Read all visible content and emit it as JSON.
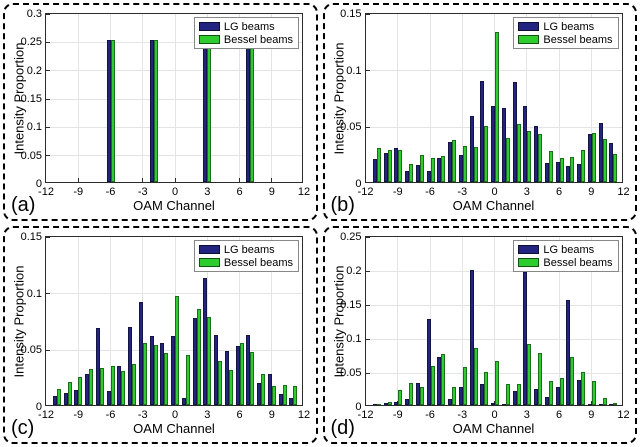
{
  "colors": {
    "lg": "#232380",
    "bessel": "#2FCC2F",
    "grid": "#e4e4e4",
    "axis": "#2b2b2b"
  },
  "legend": {
    "items": [
      {
        "label": "LG beams",
        "color_key": "lg"
      },
      {
        "label": "Bessel beams",
        "color_key": "bessel"
      }
    ]
  },
  "chart_data": [
    {
      "id": "a",
      "panel_label": "(a)",
      "type": "bar",
      "xlabel": "OAM Channel",
      "ylabel": "Intensity Proportion",
      "xlim": [
        -12,
        12
      ],
      "ylim": [
        0,
        0.3
      ],
      "xticks": [
        -12,
        -9,
        -6,
        -3,
        0,
        3,
        6,
        9,
        12
      ],
      "yticks": [
        0,
        0.05,
        0.1,
        0.15,
        0.2,
        0.25,
        0.3
      ],
      "grid": true,
      "legend_position": "top-right",
      "channels": [
        -6,
        -2,
        3,
        7
      ],
      "series": [
        {
          "name": "LG beams",
          "values": [
            0.25,
            0.25,
            0.25,
            0.25
          ]
        },
        {
          "name": "Bessel beams",
          "values": [
            0.25,
            0.25,
            0.25,
            0.25
          ]
        }
      ]
    },
    {
      "id": "b",
      "panel_label": "(b)",
      "type": "bar",
      "xlabel": "OAM Channel",
      "ylabel": "Intensity Proportion",
      "xlim": [
        -12,
        12
      ],
      "ylim": [
        0,
        0.15
      ],
      "xticks": [
        -12,
        -9,
        -6,
        -3,
        0,
        3,
        6,
        9,
        12
      ],
      "yticks": [
        0,
        0.05,
        0.1,
        0.15
      ],
      "grid": true,
      "legend_position": "top-right",
      "channels": [
        -11,
        -10,
        -9,
        -8,
        -7,
        -6,
        -5,
        -4,
        -3,
        -2,
        -1,
        0,
        1,
        2,
        3,
        4,
        5,
        6,
        7,
        8,
        9,
        10,
        11
      ],
      "series": [
        {
          "name": "LG beams",
          "values": [
            0.02,
            0.026,
            0.03,
            0.01,
            0.015,
            0.01,
            0.021,
            0.035,
            0.024,
            0.058,
            0.089,
            0.067,
            0.065,
            0.088,
            0.067,
            0.049,
            0.017,
            0.018,
            0.014,
            0.016,
            0.042,
            0.052,
            0.034
          ]
        },
        {
          "name": "Bessel beams",
          "values": [
            0.03,
            0.028,
            0.028,
            0.016,
            0.024,
            0.021,
            0.023,
            0.037,
            0.032,
            0.031,
            0.049,
            0.132,
            0.039,
            0.051,
            0.045,
            0.042,
            0.027,
            0.021,
            0.022,
            0.028,
            0.043,
            0.038,
            0.025
          ]
        }
      ]
    },
    {
      "id": "c",
      "panel_label": "(c)",
      "type": "bar",
      "xlabel": "OAM Channel",
      "ylabel": "Intensity Proportion",
      "xlim": [
        -12,
        12
      ],
      "ylim": [
        0,
        0.15
      ],
      "xticks": [
        -12,
        -9,
        -6,
        -3,
        0,
        3,
        6,
        9,
        12
      ],
      "yticks": [
        0,
        0.05,
        0.1,
        0.15
      ],
      "grid": true,
      "legend_position": "top-right",
      "channels": [
        -11,
        -10,
        -9,
        -8,
        -7,
        -6,
        -5,
        -4,
        -3,
        -2,
        -1,
        0,
        1,
        2,
        3,
        4,
        5,
        6,
        7,
        8,
        9,
        10,
        11
      ],
      "series": [
        {
          "name": "LG beams",
          "values": [
            0.008,
            0.011,
            0.013,
            0.027,
            0.068,
            0.012,
            0.034,
            0.069,
            0.091,
            0.061,
            0.055,
            0.061,
            0.006,
            0.077,
            0.112,
            0.062,
            0.048,
            0.052,
            0.062,
            0.019,
            0.027,
            0.01,
            0.006
          ]
        },
        {
          "name": "Bessel beams",
          "values": [
            0.014,
            0.02,
            0.025,
            0.032,
            0.033,
            0.034,
            0.03,
            0.036,
            0.055,
            0.053,
            0.046,
            0.096,
            0.044,
            0.085,
            0.078,
            0.039,
            0.031,
            0.055,
            0.047,
            0.027,
            0.017,
            0.018,
            0.017
          ]
        }
      ]
    },
    {
      "id": "d",
      "panel_label": "(d)",
      "type": "bar",
      "xlabel": "OAM Channel",
      "ylabel": "Intensity Proportion",
      "xlim": [
        -12,
        12
      ],
      "ylim": [
        0,
        0.25
      ],
      "xticks": [
        -12,
        -9,
        -6,
        -3,
        0,
        3,
        6,
        9,
        12
      ],
      "yticks": [
        0,
        0.05,
        0.1,
        0.15,
        0.2,
        0.25
      ],
      "grid": true,
      "legend_position": "top-right",
      "channels": [
        -11,
        -10,
        -9,
        -8,
        -7,
        -6,
        -5,
        -4,
        -3,
        -2,
        -1,
        0,
        1,
        2,
        3,
        4,
        5,
        6,
        7,
        8,
        9,
        10,
        11
      ],
      "series": [
        {
          "name": "LG beams",
          "values": [
            0.001,
            0.003,
            0.005,
            0.009,
            0.033,
            0.127,
            0.07,
            0.009,
            0.026,
            0.199,
            0.031,
            0.003,
            0.002,
            0.021,
            0.195,
            0.023,
            0.012,
            0.027,
            0.155,
            0.037,
            0.002,
            0.001,
            0.001
          ]
        },
        {
          "name": "Bessel beams",
          "values": [
            0.002,
            0.004,
            0.022,
            0.033,
            0.026,
            0.057,
            0.075,
            0.026,
            0.056,
            0.084,
            0.049,
            0.065,
            0.031,
            0.031,
            0.09,
            0.077,
            0.035,
            0.04,
            0.07,
            0.048,
            0.036,
            0.011,
            0.003
          ]
        }
      ]
    }
  ]
}
